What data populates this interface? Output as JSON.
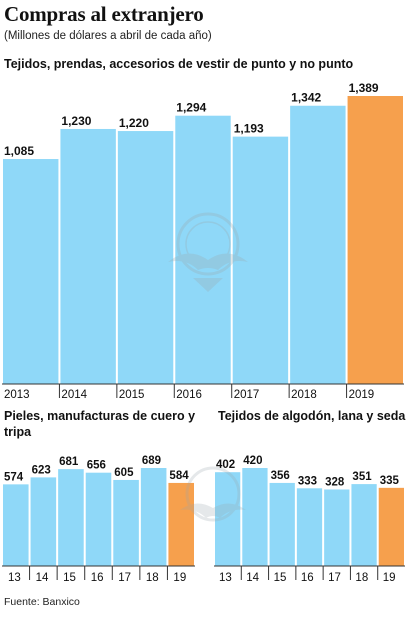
{
  "header": {
    "title": "Compras al extranjero",
    "subtitle": "(Millones de dólares a abril de cada año)"
  },
  "source": "Fuente: Banxico",
  "colors": {
    "bar": "#8fd8f8",
    "highlight": "#f6a04d",
    "axis": "#333333",
    "emblem": "#9aa7ad"
  },
  "chart_data": [
    {
      "type": "bar",
      "title": "Tejidos, prendas, accesorios de vestir de punto y no punto",
      "categories": [
        "2013",
        "2014",
        "2015",
        "2016",
        "2017",
        "2018",
        "2019"
      ],
      "values": [
        1085,
        1230,
        1220,
        1294,
        1193,
        1342,
        1389
      ],
      "labels": [
        "1,085",
        "1,230",
        "1,220",
        "1,294",
        "1,193",
        "1,342",
        "1,389"
      ],
      "highlight": "2019",
      "ylim": [
        0,
        1389
      ],
      "grid": false
    },
    {
      "type": "bar",
      "title": "Pieles, manufacturas de cuero y tripa",
      "categories": [
        "13",
        "14",
        "15",
        "16",
        "17",
        "18",
        "19"
      ],
      "values": [
        574,
        623,
        681,
        656,
        605,
        689,
        584
      ],
      "labels": [
        "574",
        "623",
        "681",
        "656",
        "605",
        "689",
        "584"
      ],
      "highlight": "19",
      "ylim": [
        0,
        689
      ],
      "grid": false
    },
    {
      "type": "bar",
      "title": "Tejidos de algodón, lana y seda",
      "categories": [
        "13",
        "14",
        "15",
        "16",
        "17",
        "18",
        "19"
      ],
      "values": [
        402,
        420,
        356,
        333,
        328,
        351,
        335
      ],
      "labels": [
        "402",
        "420",
        "356",
        "333",
        "328",
        "351",
        "335"
      ],
      "highlight": "19",
      "ylim": [
        0,
        420
      ],
      "grid": false
    }
  ]
}
